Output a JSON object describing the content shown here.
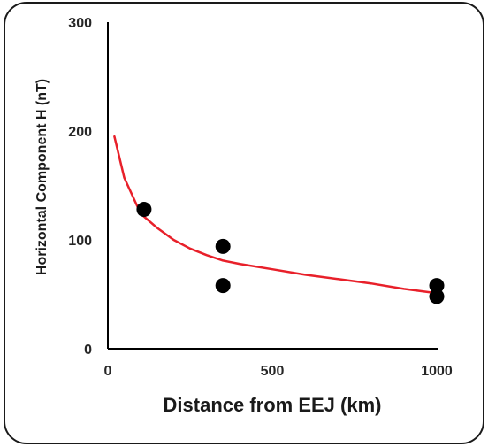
{
  "chart_data": {
    "type": "scatter",
    "xlabel": "Distance from EEJ (km)",
    "ylabel": "Horizontal  Component  H (nT)",
    "xlim": [
      0,
      1000
    ],
    "ylim": [
      0,
      300
    ],
    "x_ticks": [
      "0",
      "500",
      "1000"
    ],
    "y_ticks": [
      "0",
      "100",
      "200",
      "300"
    ],
    "points": [
      {
        "x": 110,
        "y": 128
      },
      {
        "x": 350,
        "y": 94
      },
      {
        "x": 350,
        "y": 58
      },
      {
        "x": 1000,
        "y": 58
      },
      {
        "x": 1000,
        "y": 48
      }
    ],
    "trendline": {
      "type": "power",
      "points": [
        {
          "x": 20,
          "y": 195
        },
        {
          "x": 50,
          "y": 157
        },
        {
          "x": 100,
          "y": 124
        },
        {
          "x": 150,
          "y": 111
        },
        {
          "x": 200,
          "y": 100
        },
        {
          "x": 250,
          "y": 92
        },
        {
          "x": 300,
          "y": 86
        },
        {
          "x": 350,
          "y": 81
        },
        {
          "x": 400,
          "y": 78
        },
        {
          "x": 500,
          "y": 73
        },
        {
          "x": 600,
          "y": 68
        },
        {
          "x": 700,
          "y": 64
        },
        {
          "x": 800,
          "y": 60
        },
        {
          "x": 900,
          "y": 55
        },
        {
          "x": 1000,
          "y": 51
        }
      ]
    },
    "colors": {
      "points": "#000000",
      "trendline": "#e8202a",
      "axis": "#000000"
    },
    "grid": false,
    "legend": "none"
  }
}
